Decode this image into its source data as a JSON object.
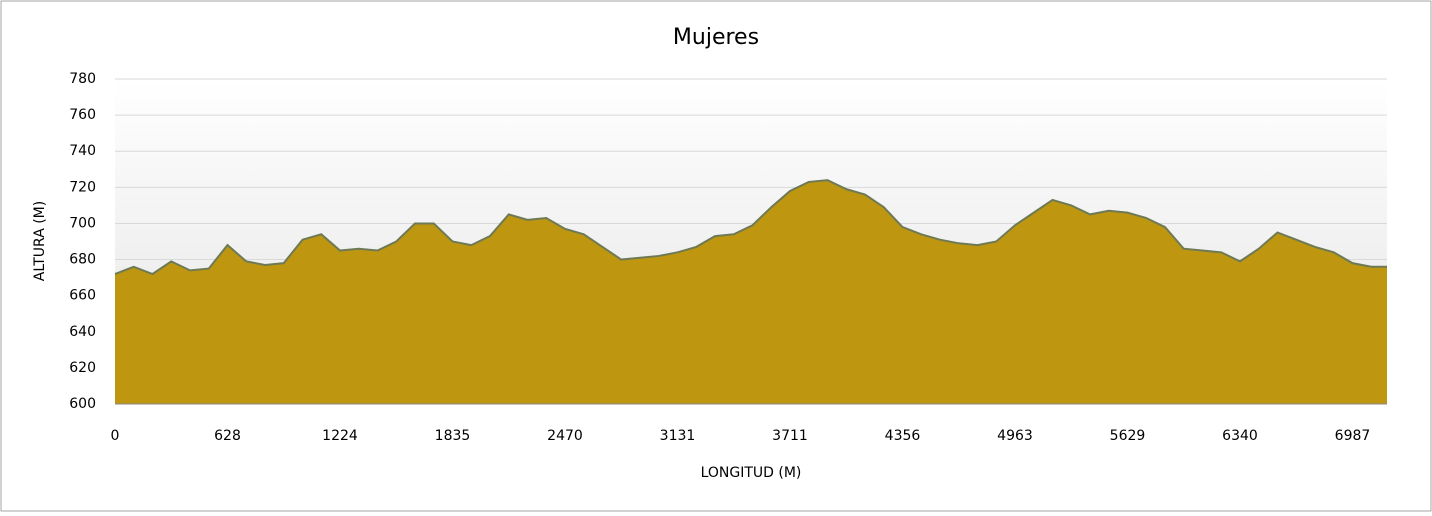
{
  "chart_data": {
    "type": "area",
    "title": "Mujeres",
    "y_label": "ALTURA (M)",
    "x_label": "LONGITUD (M)",
    "categories": [
      "0",
      null,
      null,
      null,
      null,
      null,
      "628",
      null,
      null,
      null,
      null,
      null,
      "1224",
      null,
      null,
      null,
      null,
      null,
      "1835",
      null,
      null,
      null,
      null,
      null,
      "2470",
      null,
      null,
      null,
      null,
      null,
      "3131",
      null,
      null,
      null,
      null,
      null,
      "3711",
      null,
      null,
      null,
      null,
      null,
      "4356",
      null,
      null,
      null,
      null,
      null,
      "4963",
      null,
      null,
      null,
      null,
      null,
      "5629",
      null,
      null,
      null,
      null,
      null,
      "6340",
      null,
      null,
      null,
      null,
      null,
      "6987",
      null,
      null
    ],
    "values": [
      672,
      676,
      672,
      679,
      674,
      675,
      688,
      679,
      677,
      678,
      691,
      694,
      685,
      686,
      685,
      690,
      700,
      700,
      690,
      688,
      693,
      705,
      702,
      703,
      697,
      694,
      687,
      680,
      681,
      682,
      684,
      687,
      693,
      694,
      699,
      709,
      718,
      723,
      724,
      719,
      716,
      709,
      698,
      694,
      691,
      689,
      688,
      690,
      699,
      706,
      713,
      710,
      705,
      707,
      706,
      703,
      698,
      686,
      685,
      684,
      679,
      686,
      695,
      691,
      687,
      684,
      678,
      676,
      676
    ],
    "color": "#bf960f",
    "line_color": "#6e7a55",
    "ylim": [
      600,
      780
    ],
    "yticks": [
      600,
      620,
      640,
      660,
      680,
      700,
      720,
      740,
      760,
      780
    ],
    "grid": true
  }
}
